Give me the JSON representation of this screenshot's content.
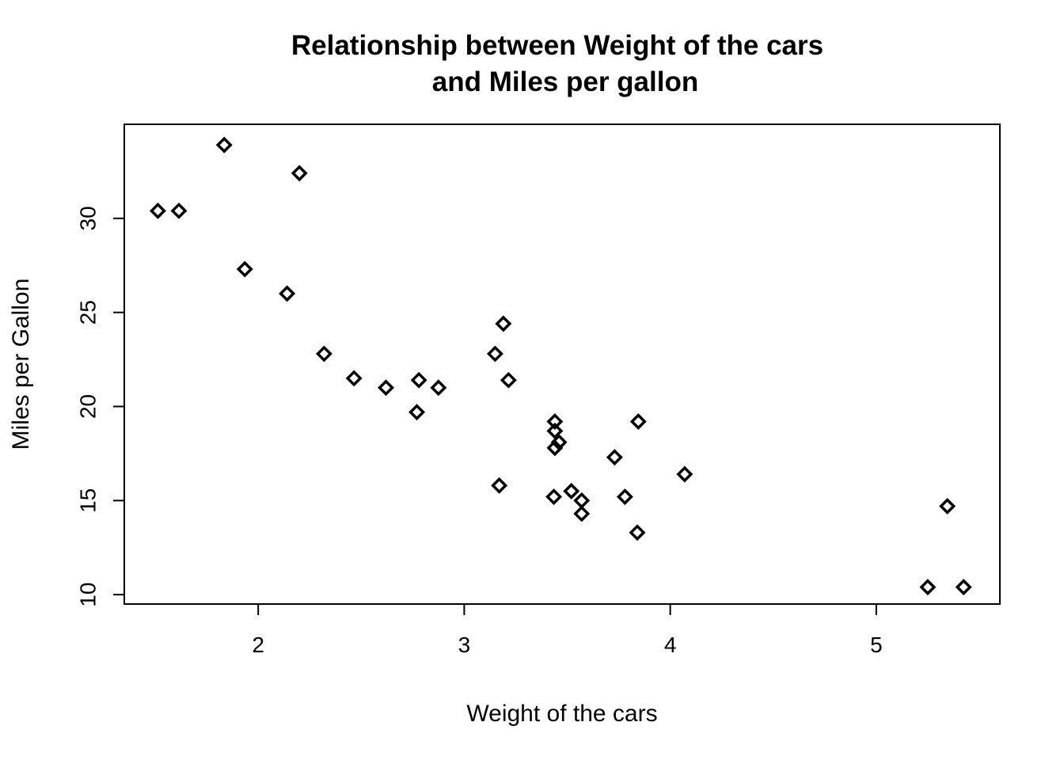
{
  "chart_data": {
    "type": "scatter",
    "title_line1": "Relationship between Weight of the cars",
    "title_line2": "and Miles per gallon",
    "xlabel": "Weight of the cars",
    "ylabel": "Miles per Gallon",
    "xlim": [
      1.35,
      5.6
    ],
    "ylim": [
      9.5,
      35.0
    ],
    "x_ticks": [
      2,
      3,
      4,
      5
    ],
    "y_ticks": [
      10,
      15,
      20,
      25,
      30
    ],
    "grid": false,
    "marker": "diamond",
    "color": "#000000",
    "points": [
      {
        "x": 2.62,
        "y": 21.0
      },
      {
        "x": 2.875,
        "y": 21.0
      },
      {
        "x": 2.32,
        "y": 22.8
      },
      {
        "x": 3.215,
        "y": 21.4
      },
      {
        "x": 3.44,
        "y": 18.7
      },
      {
        "x": 3.46,
        "y": 18.1
      },
      {
        "x": 3.57,
        "y": 14.3
      },
      {
        "x": 3.19,
        "y": 24.4
      },
      {
        "x": 3.15,
        "y": 22.8
      },
      {
        "x": 3.44,
        "y": 19.2
      },
      {
        "x": 3.44,
        "y": 17.8
      },
      {
        "x": 4.07,
        "y": 16.4
      },
      {
        "x": 3.73,
        "y": 17.3
      },
      {
        "x": 3.78,
        "y": 15.2
      },
      {
        "x": 5.25,
        "y": 10.4
      },
      {
        "x": 5.424,
        "y": 10.4
      },
      {
        "x": 5.345,
        "y": 14.7
      },
      {
        "x": 2.2,
        "y": 32.4
      },
      {
        "x": 1.615,
        "y": 30.4
      },
      {
        "x": 1.835,
        "y": 33.9
      },
      {
        "x": 2.465,
        "y": 21.5
      },
      {
        "x": 3.52,
        "y": 15.5
      },
      {
        "x": 3.435,
        "y": 15.2
      },
      {
        "x": 3.84,
        "y": 13.3
      },
      {
        "x": 3.845,
        "y": 19.2
      },
      {
        "x": 1.935,
        "y": 27.3
      },
      {
        "x": 2.14,
        "y": 26.0
      },
      {
        "x": 1.513,
        "y": 30.4
      },
      {
        "x": 3.17,
        "y": 15.8
      },
      {
        "x": 2.77,
        "y": 19.7
      },
      {
        "x": 3.57,
        "y": 15.0
      },
      {
        "x": 2.78,
        "y": 21.4
      }
    ]
  }
}
